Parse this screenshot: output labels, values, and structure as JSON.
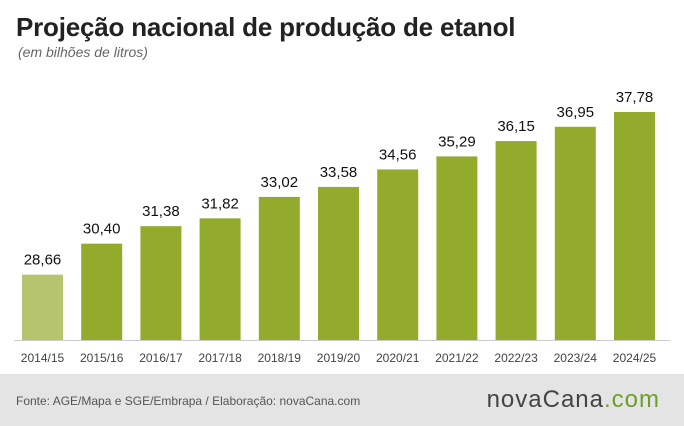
{
  "header": {
    "title": "Projeção nacional de produção de etanol",
    "subtitle": "(em bilhões de litros)"
  },
  "footer": {
    "source": "Fonte: AGE/Mapa e SGE/Embrapa / Elaboração: novaCana.com",
    "brand_main": "novaCana",
    "brand_suffix": ".com"
  },
  "colors": {
    "bar": "#93ab2d",
    "bar_first": "#b5c46d",
    "brand_accent": "#6d9f2c",
    "footer_bg": "#e4e4e4"
  },
  "chart_data": {
    "type": "bar",
    "title": "Projeção nacional de produção de etanol",
    "subtitle": "(em bilhões de litros)",
    "categories": [
      "2014/15",
      "2015/16",
      "2016/17",
      "2017/18",
      "2018/19",
      "2019/20",
      "2020/21",
      "2021/22",
      "2022/23",
      "2023/24",
      "2024/25"
    ],
    "values": [
      28.66,
      30.4,
      31.38,
      31.82,
      33.02,
      33.58,
      34.56,
      35.29,
      36.15,
      36.95,
      37.78
    ],
    "value_labels": [
      "28,66",
      "30,40",
      "31,38",
      "31,82",
      "33,02",
      "33,58",
      "34,56",
      "35,29",
      "36,15",
      "36,95",
      "37,78"
    ],
    "ylim": [
      25.0,
      38.9
    ],
    "grid": false,
    "legend": "none"
  }
}
